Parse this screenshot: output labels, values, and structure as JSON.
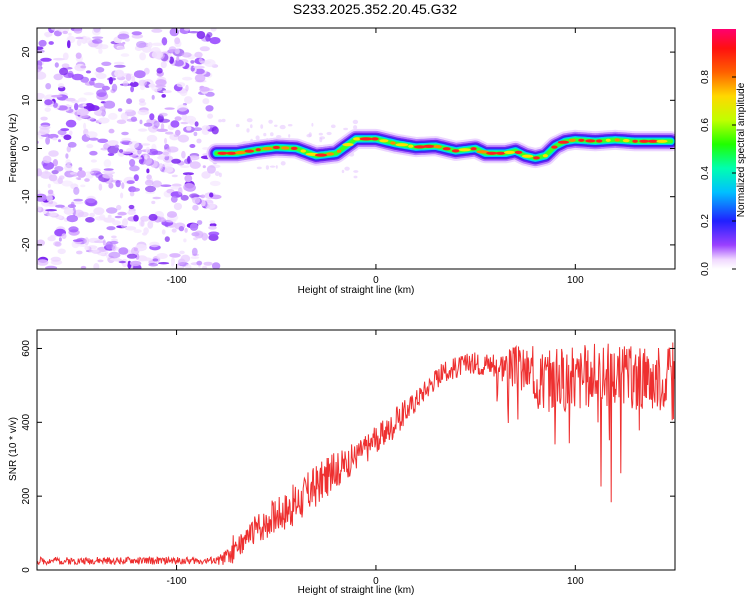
{
  "title": "S233.2025.352.20.45.G32",
  "chart_data": [
    {
      "type": "heatmap",
      "panel": "spectrogram",
      "xlabel": "Height of straight line (km)",
      "ylabel": "Frequency (Hz)",
      "xlim": [
        -170,
        150
      ],
      "ylim": [
        -25,
        25
      ],
      "xticks": [
        -100,
        0,
        100
      ],
      "yticks": [
        -20,
        -10,
        0,
        10,
        20
      ],
      "noise_region_x": [
        -170,
        -80
      ],
      "ridge": {
        "x": [
          -80,
          -70,
          -60,
          -50,
          -40,
          -30,
          -20,
          -15,
          -10,
          0,
          10,
          20,
          30,
          40,
          50,
          55,
          60,
          65,
          70,
          75,
          80,
          85,
          90,
          95,
          100,
          110,
          120,
          130,
          140,
          148
        ],
        "frequency": [
          -1,
          -1,
          -0.3,
          0.2,
          0,
          -1.5,
          -1,
          0.5,
          2,
          2,
          1,
          0.3,
          0.5,
          -0.5,
          0,
          -1,
          -1,
          -1,
          -0.5,
          -1.5,
          -2,
          -1.5,
          0.5,
          1.5,
          1.8,
          1.5,
          1.8,
          1.5,
          1.5,
          1.5
        ]
      },
      "colorbar": {
        "label": "Normalized spectral amplitude",
        "range": [
          0,
          1
        ],
        "ticks": [
          "0.0",
          "0.2",
          "0.4",
          "0.6",
          "0.8"
        ]
      }
    },
    {
      "type": "line",
      "panel": "snr",
      "xlabel": "Height of straight line (km)",
      "ylabel": "SNR (10 * v/v)",
      "xlim": [
        -170,
        150
      ],
      "ylim": [
        0,
        650
      ],
      "xticks": [
        -100,
        0,
        100
      ],
      "yticks": [
        0,
        200,
        400,
        600
      ],
      "series": [
        {
          "name": "SNR",
          "color": "#ee3030",
          "envelope": {
            "x": [
              -170,
              -80,
              -72,
              -68,
              -60,
              -50,
              -40,
              -30,
              -20,
              -10,
              0,
              10,
              20,
              30,
              40,
              50,
              60,
              70,
              80,
              90,
              100,
              110,
              120,
              130,
              140,
              150
            ],
            "center": [
              25,
              25,
              40,
              70,
              110,
              150,
              180,
              230,
              270,
              310,
              350,
              400,
              460,
              520,
              550,
              560,
              560,
              550,
              530,
              520,
              520,
              530,
              530,
              520,
              520,
              530
            ],
            "spread": [
              10,
              10,
              30,
              30,
              40,
              50,
              60,
              60,
              50,
              40,
              40,
              40,
              30,
              30,
              30,
              30,
              40,
              60,
              80,
              90,
              90,
              90,
              90,
              90,
              90,
              90
            ]
          },
          "min": 0,
          "max": 640
        }
      ]
    }
  ]
}
